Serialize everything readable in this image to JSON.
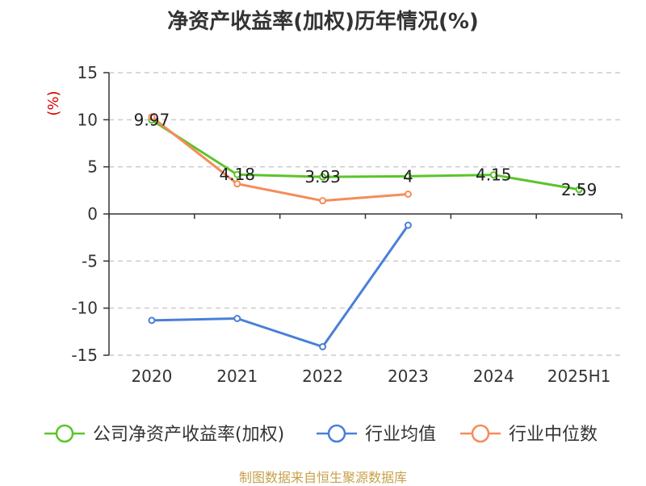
{
  "chart_data": {
    "type": "line",
    "title": "净资产收益率(加权)历年情况(%)",
    "ylabel": "(%)",
    "xlabel": "",
    "categories": [
      "2020",
      "2021",
      "2022",
      "2023",
      "2024",
      "2025H1"
    ],
    "ylim": [
      -15,
      15
    ],
    "yticks": [
      15,
      10,
      5,
      0,
      -5,
      -10,
      -15
    ],
    "grid": true,
    "legend_position": "bottom",
    "series": [
      {
        "name": "公司净资产收益率(加权)",
        "color": "#5cc42a",
        "values": [
          9.97,
          4.18,
          3.93,
          4,
          4.15,
          2.59
        ],
        "labels": [
          "9.97",
          "4.18",
          "3.93",
          "4",
          "4.15",
          "2.59"
        ]
      },
      {
        "name": "行业均值",
        "color": "#4a7fd8",
        "values": [
          -11.3,
          -11.1,
          -14.1,
          -1.2,
          null,
          null
        ]
      },
      {
        "name": "行业中位数",
        "color": "#f58c5a",
        "values": [
          10.3,
          3.2,
          1.4,
          2.1,
          null,
          null
        ]
      }
    ]
  },
  "source_note": "制图数据来自恒生聚源数据库",
  "colors": {
    "axis": "#333333",
    "grid": "#cccccc",
    "ylabel": "#dd0000"
  }
}
